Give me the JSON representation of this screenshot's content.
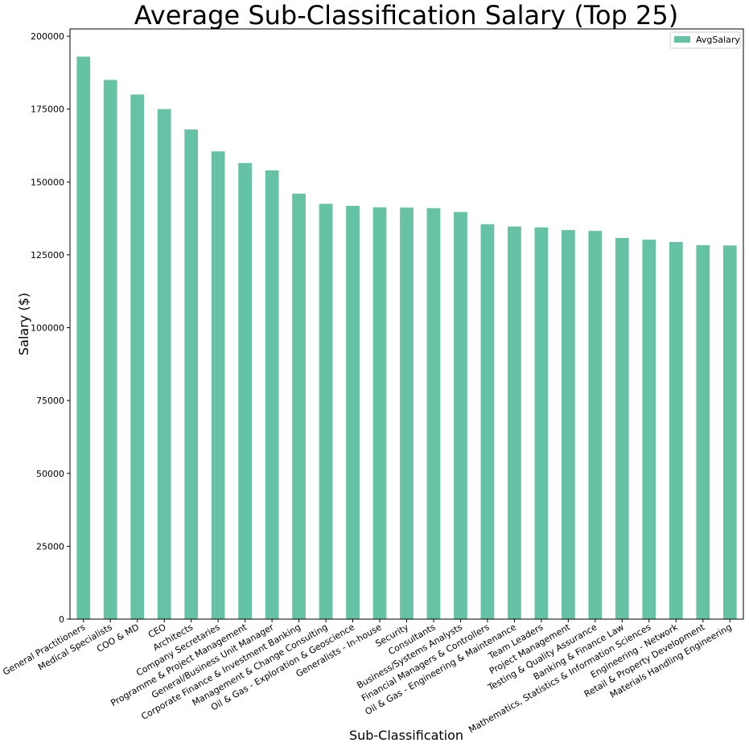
{
  "chart_data": {
    "type": "bar",
    "title": "Average Sub-Classification Salary (Top 25)",
    "xlabel": "Sub-Classification",
    "ylabel": "Salary ($)",
    "ylim": [
      0,
      202500
    ],
    "yticks": [
      0,
      25000,
      50000,
      75000,
      100000,
      125000,
      150000,
      175000,
      200000
    ],
    "grid": false,
    "legend_position": "top-right",
    "bar_color": "#66c2a5",
    "categories": [
      "General Practitioners",
      "Medical Specialists",
      "COO & MD",
      "CEO",
      "Architects",
      "Company Secretaries",
      "Programme & Project Management",
      "General/Business Unit Manager",
      "Corporate Finance & Investment Banking",
      "Management & Change Consulting",
      "Oil & Gas - Exploration & Geoscience",
      "Generalists - In-house",
      "Security",
      "Consultants",
      "Business/Systems Analysts",
      "Financial Managers & Controllers",
      "Oil & Gas - Engineering & Maintenance",
      "Team Leaders",
      "Project Management",
      "Testing & Quality Assurance",
      "Banking & Finance Law",
      "Mathematics, Statistics & Information Sciences",
      "Engineering - Network",
      "Retail & Property Development",
      "Materials Handling Engineering"
    ],
    "series": [
      {
        "name": "AvgSalary",
        "values": [
          193000,
          185000,
          180000,
          175000,
          168000,
          160500,
          156500,
          154000,
          146000,
          142500,
          141800,
          141300,
          141200,
          141000,
          139700,
          135500,
          134700,
          134400,
          133500,
          133200,
          130800,
          130200,
          129400,
          128300,
          128200
        ]
      }
    ]
  }
}
